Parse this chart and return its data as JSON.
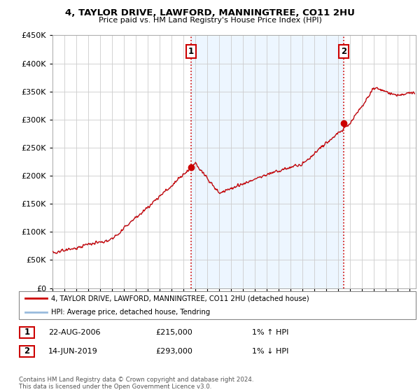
{
  "title": "4, TAYLOR DRIVE, LAWFORD, MANNINGTREE, CO11 2HU",
  "subtitle": "Price paid vs. HM Land Registry's House Price Index (HPI)",
  "legend_line1": "4, TAYLOR DRIVE, LAWFORD, MANNINGTREE, CO11 2HU (detached house)",
  "legend_line2": "HPI: Average price, detached house, Tendring",
  "footnote": "Contains HM Land Registry data © Crown copyright and database right 2024.\nThis data is licensed under the Open Government Licence v3.0.",
  "sale1_date": "22-AUG-2006",
  "sale1_price": 215000,
  "sale1_hpi": "1% ↑ HPI",
  "sale1_x": 2006.64,
  "sale2_date": "14-JUN-2019",
  "sale2_price": 293000,
  "sale2_hpi": "1% ↓ HPI",
  "sale2_x": 2019.45,
  "ylim_min": 0,
  "ylim_max": 450000,
  "xlim_start": 1995,
  "xlim_end": 2025.5,
  "property_color": "#cc0000",
  "hpi_color": "#99bbdd",
  "shade_color": "#ddeeff",
  "dashed_color": "#cc0000",
  "background_color": "#ffffff",
  "grid_color": "#cccccc",
  "label1_box_color": "#cc0000",
  "label2_box_color": "#cc0000"
}
